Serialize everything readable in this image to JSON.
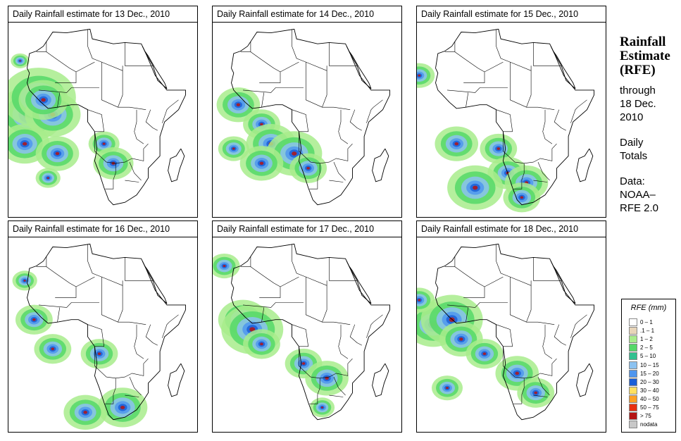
{
  "panels": [
    {
      "title": "Daily Rainfall estimate for  13 Dec., 2010",
      "rain": [
        [
          -16,
          2,
          2.2
        ],
        [
          -12,
          9,
          2.4
        ],
        [
          -6,
          2,
          1.8
        ],
        [
          -10,
          8,
          1.6
        ],
        [
          16,
          -10,
          1
        ],
        [
          20,
          -18,
          1.3
        ],
        [
          -20,
          24,
          0.6
        ],
        [
          -18,
          -10,
          1.6
        ],
        [
          -4,
          -14,
          1.4
        ],
        [
          -8,
          -24,
          0.8
        ]
      ]
    },
    {
      "title": "Daily Rainfall estimate for  14 Dec., 2010",
      "rain": [
        [
          -14,
          6,
          1.4
        ],
        [
          -4,
          -2,
          1.2
        ],
        [
          0,
          -10,
          1.6
        ],
        [
          10,
          -14,
          1.8
        ],
        [
          -16,
          -12,
          1
        ],
        [
          16,
          -20,
          1.2
        ],
        [
          -4,
          -18,
          1.4
        ]
      ]
    },
    {
      "title": "Daily Rainfall estimate for  15 Dec., 2010",
      "rain": [
        [
          -8,
          -10,
          1.4
        ],
        [
          10,
          -12,
          1.2
        ],
        [
          14,
          -22,
          1.3
        ],
        [
          22,
          -26,
          1.4
        ],
        [
          0,
          -28,
          1.8
        ],
        [
          20,
          -32,
          1.2
        ],
        [
          -24,
          18,
          1
        ]
      ]
    },
    {
      "title": "Daily Rainfall estimate for  16 Dec., 2010",
      "rain": [
        [
          -14,
          6,
          1.2
        ],
        [
          -6,
          -6,
          1.2
        ],
        [
          14,
          -8,
          1.2
        ],
        [
          24,
          -30,
          1.6
        ],
        [
          8,
          -32,
          1.4
        ],
        [
          -18,
          22,
          0.8
        ]
      ]
    },
    {
      "title": "Daily Rainfall estimate for  17 Dec., 2010",
      "rain": [
        [
          -12,
          6,
          1.6
        ],
        [
          -8,
          2,
          2
        ],
        [
          -4,
          -4,
          1.2
        ],
        [
          14,
          -12,
          1.2
        ],
        [
          24,
          -18,
          1.4
        ],
        [
          -20,
          28,
          1
        ],
        [
          22,
          -30,
          0.8
        ]
      ]
    },
    {
      "title": "Daily Rainfall estimate for  18 Dec., 2010",
      "rain": [
        [
          -18,
          4,
          1.8
        ],
        [
          -10,
          6,
          2
        ],
        [
          -6,
          -2,
          1.4
        ],
        [
          4,
          -8,
          1.2
        ],
        [
          18,
          -16,
          1.4
        ],
        [
          26,
          -24,
          1.2
        ],
        [
          -24,
          14,
          1
        ],
        [
          -12,
          -22,
          1
        ]
      ]
    }
  ],
  "side": {
    "title": [
      "Rainfall",
      "Estimate",
      "(RFE)"
    ],
    "through": "through",
    "date": [
      "18 Dec.",
      "2010"
    ],
    "totals": [
      "Daily",
      "Totals"
    ],
    "source": [
      "Data:",
      "NOAA–",
      "RFE 2.0"
    ]
  },
  "legend": {
    "title": "RFE (mm)",
    "items": [
      {
        "label": "0 – 1",
        "color": "#ffffff"
      },
      {
        "label": ".1 – 1",
        "color": "#e8d5b9"
      },
      {
        "label": "1 – 2",
        "color": "#a8ec8c"
      },
      {
        "label": "2 – 5",
        "color": "#55d868"
      },
      {
        "label": "5 – 10",
        "color": "#32c090"
      },
      {
        "label": "10 – 15",
        "color": "#8cc2f0"
      },
      {
        "label": "15 – 20",
        "color": "#4f96ef"
      },
      {
        "label": "20 – 30",
        "color": "#1a5fd8"
      },
      {
        "label": "30 – 40",
        "color": "#ffe060"
      },
      {
        "label": "40 – 50",
        "color": "#ffa024"
      },
      {
        "label": "50 – 75",
        "color": "#e83010"
      },
      {
        "label": "> 75",
        "color": "#b41414"
      },
      {
        "label": "nodata",
        "color": "#c8c8c8"
      }
    ]
  }
}
